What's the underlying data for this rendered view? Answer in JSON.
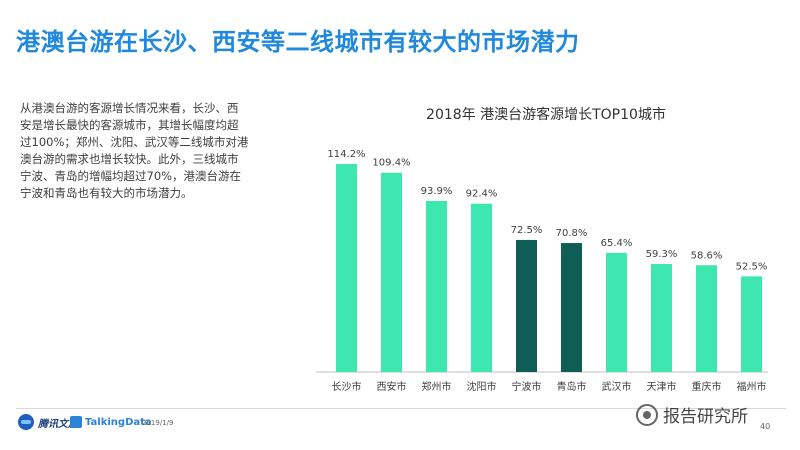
{
  "slide": {
    "title": "港澳台游在长沙、西安等二线城市有较大的市场潜力",
    "intro": "从港澳台游的客源增长情况来看，长沙、西\n安是增长最快的客源城市，其增长幅度均超\n过100%；郑州、沈阳、武汉等二线城市对港\n澳台游的需求也增长较快。此外，三线城市\n宁波、青岛的增幅均超过70%，港澳台游在\n宁波和青岛也有较大的市场潜力。"
  },
  "footer": {
    "tencent_logo": "腾讯文旅",
    "talkingdata_logo": "TalkingData",
    "date": "2019/1/9",
    "page": "40",
    "watermark": "报告研究所"
  },
  "colors": {
    "title": "#2089de",
    "bar_light": "#3ee6b0",
    "bar_dark": "#0e5e55",
    "axis": "#bfbfbf"
  },
  "chart_data": {
    "type": "bar",
    "title": "2018年 港澳台游客源增长TOP10城市",
    "categories": [
      "长沙市",
      "西安市",
      "郑州市",
      "沈阳市",
      "宁波市",
      "青岛市",
      "武汉市",
      "天津市",
      "重庆市",
      "福州市"
    ],
    "values": [
      114.2,
      109.4,
      93.9,
      92.4,
      72.5,
      70.8,
      65.4,
      59.3,
      58.6,
      52.5
    ],
    "labels": [
      "114.2%",
      "109.4%",
      "93.9%",
      "92.4%",
      "72.5%",
      "70.8%",
      "65.4%",
      "59.3%",
      "58.6%",
      "52.5%"
    ],
    "highlight": [
      false,
      false,
      false,
      false,
      true,
      true,
      false,
      false,
      false,
      false
    ],
    "ylim": [
      0,
      114.2
    ],
    "xlabel": "",
    "ylabel": "",
    "grid": false,
    "legend": "none"
  }
}
